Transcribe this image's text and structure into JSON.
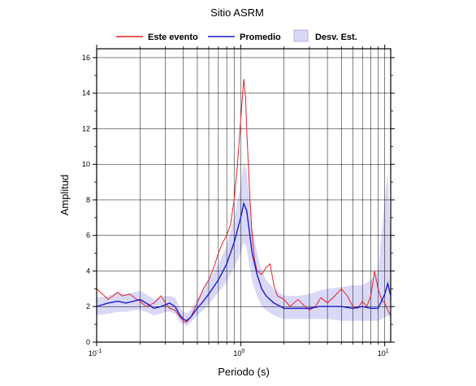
{
  "chart_data": {
    "type": "line",
    "title": "Sitio ASRM",
    "xlabel": "Periodo (s)",
    "ylabel": "Amplitud",
    "xscale": "log",
    "xlim": [
      0.1,
      11
    ],
    "ylim": [
      0,
      16.5
    ],
    "grid": true,
    "legend_position": "top",
    "x_ticks": [
      {
        "value": 0.1,
        "base": "10",
        "exp": "-1"
      },
      {
        "value": 1,
        "base": "10",
        "exp": "0"
      },
      {
        "value": 10,
        "base": "10",
        "exp": "1"
      }
    ],
    "y_ticks": [
      0,
      2,
      4,
      6,
      8,
      10,
      12,
      14,
      16
    ],
    "legend": [
      {
        "label": "Este evento",
        "kind": "line",
        "color": "#e8202a"
      },
      {
        "label": "Promedio",
        "kind": "line",
        "color": "#1a1ad0"
      },
      {
        "label": "Desv. Est.",
        "kind": "patch",
        "color": "#d9d9f7"
      }
    ],
    "series": [
      {
        "name": "Este evento",
        "color": "#e8202a",
        "x": [
          0.1,
          0.11,
          0.12,
          0.13,
          0.14,
          0.15,
          0.17,
          0.19,
          0.2,
          0.22,
          0.25,
          0.28,
          0.3,
          0.32,
          0.35,
          0.38,
          0.4,
          0.42,
          0.45,
          0.5,
          0.55,
          0.6,
          0.65,
          0.7,
          0.75,
          0.8,
          0.85,
          0.9,
          0.95,
          1.0,
          1.05,
          1.08,
          1.1,
          1.13,
          1.16,
          1.2,
          1.25,
          1.3,
          1.4,
          1.5,
          1.6,
          1.7,
          1.8,
          2.0,
          2.2,
          2.5,
          2.8,
          3.0,
          3.3,
          3.6,
          4.0,
          4.5,
          5.0,
          5.5,
          6.0,
          6.5,
          7.0,
          7.5,
          8.0,
          8.5,
          9.0,
          9.5,
          10.0,
          10.5,
          11.0
        ],
        "y": [
          3.0,
          2.7,
          2.4,
          2.6,
          2.8,
          2.6,
          2.7,
          2.4,
          2.3,
          2.0,
          2.2,
          2.6,
          2.2,
          1.9,
          1.8,
          1.4,
          1.2,
          1.1,
          1.4,
          2.2,
          3.0,
          3.5,
          4.2,
          5.0,
          5.6,
          6.0,
          6.6,
          8.0,
          10.0,
          12.5,
          14.8,
          13.8,
          12.0,
          10.0,
          8.0,
          6.0,
          4.6,
          4.0,
          3.8,
          4.2,
          4.4,
          3.2,
          2.6,
          2.4,
          2.0,
          2.4,
          2.0,
          1.8,
          2.0,
          2.5,
          2.2,
          2.6,
          3.0,
          2.6,
          2.0,
          1.9,
          2.3,
          2.0,
          2.6,
          4.0,
          3.0,
          2.4,
          2.2,
          1.8,
          1.5
        ]
      },
      {
        "name": "Promedio",
        "color": "#1a1ad0",
        "x": [
          0.1,
          0.12,
          0.14,
          0.16,
          0.18,
          0.2,
          0.22,
          0.25,
          0.28,
          0.3,
          0.32,
          0.35,
          0.38,
          0.4,
          0.42,
          0.45,
          0.5,
          0.55,
          0.6,
          0.7,
          0.8,
          0.9,
          1.0,
          1.05,
          1.1,
          1.15,
          1.2,
          1.3,
          1.4,
          1.5,
          1.7,
          2.0,
          2.5,
          3.0,
          3.5,
          4.0,
          5.0,
          6.0,
          7.0,
          8.0,
          9.0,
          10.0,
          10.5,
          11.0
        ],
        "y": [
          2.0,
          2.2,
          2.3,
          2.2,
          2.3,
          2.4,
          2.2,
          1.9,
          2.0,
          2.1,
          2.2,
          2.0,
          1.5,
          1.3,
          1.2,
          1.4,
          1.9,
          2.3,
          2.7,
          3.5,
          4.4,
          5.6,
          7.0,
          7.8,
          7.4,
          6.2,
          5.0,
          3.8,
          3.0,
          2.6,
          2.2,
          1.9,
          1.9,
          1.9,
          2.0,
          2.0,
          2.0,
          1.9,
          2.0,
          1.9,
          1.9,
          2.7,
          3.3,
          2.6
        ]
      }
    ],
    "std_band": {
      "name": "Desv. Est.",
      "color": "#d9d9f7",
      "x": [
        0.1,
        0.12,
        0.14,
        0.16,
        0.18,
        0.2,
        0.22,
        0.25,
        0.28,
        0.3,
        0.32,
        0.35,
        0.38,
        0.4,
        0.42,
        0.45,
        0.5,
        0.55,
        0.6,
        0.7,
        0.8,
        0.9,
        1.0,
        1.05,
        1.1,
        1.15,
        1.2,
        1.3,
        1.4,
        1.5,
        1.7,
        2.0,
        2.5,
        3.0,
        3.5,
        4.0,
        5.0,
        6.0,
        7.0,
        8.0,
        9.0,
        10.0,
        10.5,
        11.0
      ],
      "lower": [
        1.5,
        1.6,
        1.7,
        1.7,
        1.8,
        1.8,
        1.7,
        1.5,
        1.6,
        1.7,
        1.7,
        1.6,
        1.1,
        1.0,
        0.9,
        1.1,
        1.5,
        1.8,
        2.1,
        2.8,
        3.4,
        4.2,
        5.0,
        5.6,
        5.3,
        4.3,
        3.4,
        2.6,
        2.0,
        1.8,
        1.5,
        1.3,
        1.3,
        1.3,
        1.3,
        1.3,
        1.2,
        1.2,
        1.2,
        1.2,
        1.2,
        1.4,
        1.5,
        1.3
      ],
      "upper": [
        2.5,
        2.6,
        2.8,
        2.7,
        2.8,
        2.9,
        2.7,
        2.4,
        2.5,
        2.6,
        2.6,
        2.5,
        1.9,
        1.7,
        1.6,
        1.8,
        2.5,
        2.9,
        3.5,
        4.4,
        5.4,
        7.0,
        8.8,
        10.1,
        9.6,
        8.0,
        6.5,
        5.0,
        4.0,
        3.5,
        3.0,
        2.6,
        2.6,
        2.7,
        2.9,
        3.0,
        3.1,
        3.2,
        3.2,
        3.5,
        4.0,
        8.0,
        9.6,
        5.5
      ]
    }
  }
}
